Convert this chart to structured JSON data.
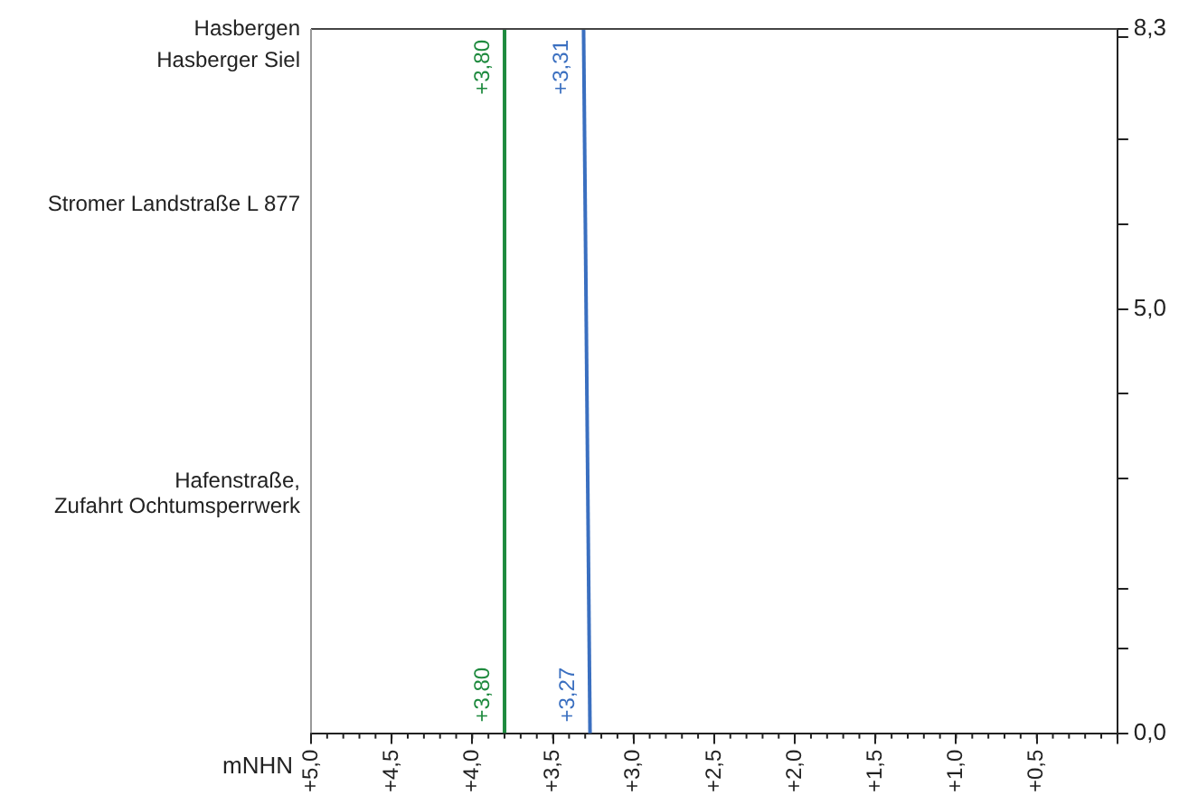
{
  "chart_data": {
    "type": "line",
    "xlabel": "mNHN",
    "xlim": [
      5.0,
      0.0
    ],
    "xticks": [
      {
        "value": 5.0,
        "label": "+5,0"
      },
      {
        "value": 4.5,
        "label": "+4,5"
      },
      {
        "value": 4.0,
        "label": "+4,0"
      },
      {
        "value": 3.5,
        "label": "+3,5"
      },
      {
        "value": 3.0,
        "label": "+3,0"
      },
      {
        "value": 2.5,
        "label": "+2,5"
      },
      {
        "value": 2.0,
        "label": "+2,0"
      },
      {
        "value": 1.5,
        "label": "+1,5"
      },
      {
        "value": 1.0,
        "label": "+1,0"
      },
      {
        "value": 0.5,
        "label": "+0,5"
      },
      {
        "value": 0.0,
        "label": null
      }
    ],
    "ylim": [
      0.0,
      8.3
    ],
    "yticks": [
      {
        "value": 0.0,
        "label": "0,0"
      },
      {
        "value": 1.0,
        "label": null
      },
      {
        "value": 1.7,
        "label": null
      },
      {
        "value": 3.0,
        "label": null
      },
      {
        "value": 4.0,
        "label": null
      },
      {
        "value": 5.0,
        "label": "5,0"
      },
      {
        "value": 6.0,
        "label": null
      },
      {
        "value": 7.0,
        "label": null
      },
      {
        "value": 8.2,
        "label": null
      },
      {
        "value": 8.3,
        "label": "8,3"
      }
    ],
    "series": [
      {
        "color": "#1e8a3e",
        "x": [
          3.8,
          3.8
        ],
        "values": [
          0.0,
          8.3
        ]
      },
      {
        "color": "#3a6fc0",
        "x": [
          3.27,
          3.31
        ],
        "values": [
          0.0,
          8.3
        ]
      }
    ],
    "annotations": [
      "Hasbergen",
      "Hasberger Siel",
      "Stromer Landstraße L 877",
      "Hafenstraße,\nZufahrt Ochtumsperrwerk",
      {
        "text": "+3,80",
        "x": 3.8,
        "y": 0.0
      },
      {
        "text": "+3,80",
        "x": 3.8,
        "y": 8.3
      },
      {
        "text": "+3,27",
        "x": 3.27,
        "y": 0.0
      },
      {
        "text": "+3,31",
        "x": 3.31,
        "y": 8.3
      }
    ],
    "grid": false,
    "legend": false,
    "marker": "none",
    "line_style": "solid"
  }
}
